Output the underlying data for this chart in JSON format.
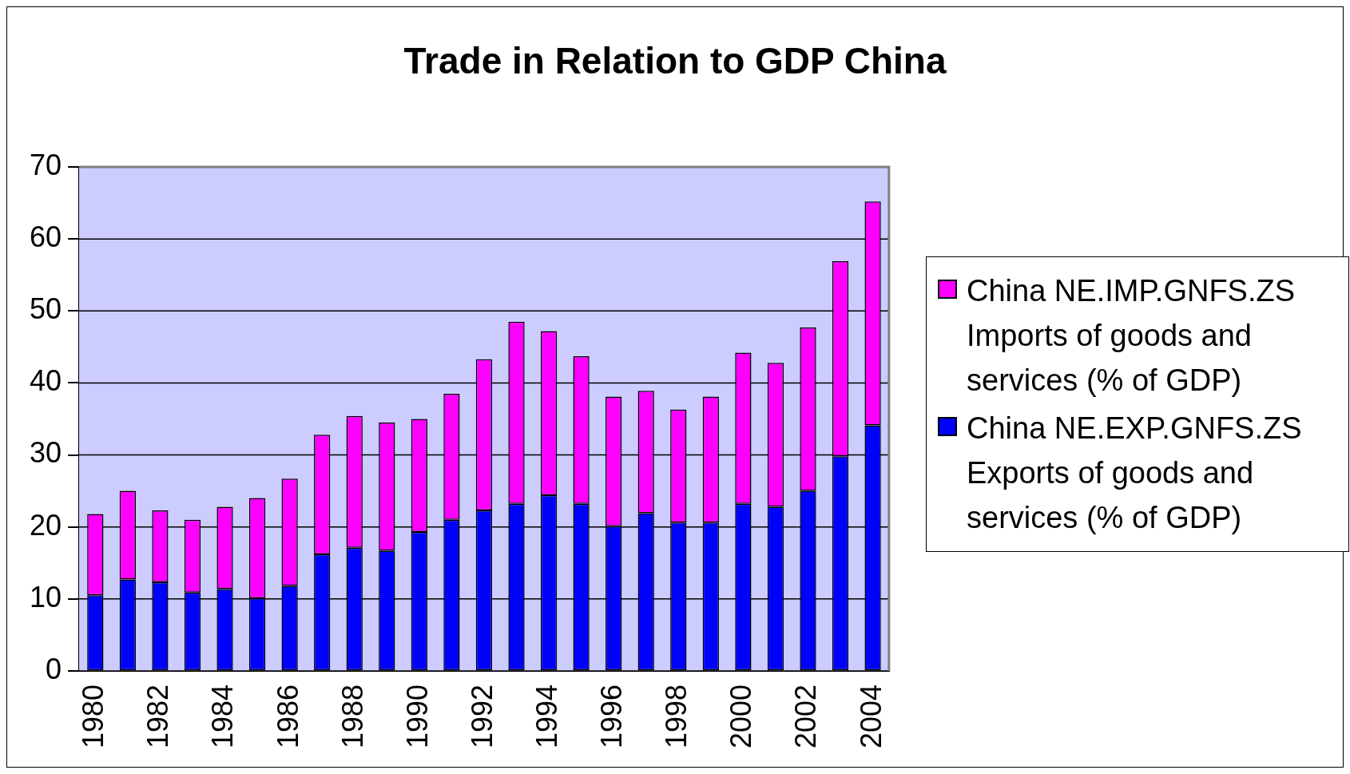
{
  "chart_data": {
    "type": "bar",
    "title": "Trade in Relation to GDP China",
    "stacked": true,
    "legend": "right",
    "grid": "y",
    "categories": [
      "1980",
      null,
      "1982",
      null,
      "1984",
      null,
      "1986",
      null,
      "1988",
      null,
      "1990",
      null,
      "1992",
      null,
      "1994",
      null,
      "1996",
      null,
      "1998",
      null,
      "2000",
      null,
      "2002",
      null,
      "2004"
    ],
    "ylim": [
      0,
      70
    ],
    "yticks": [
      0,
      10,
      20,
      30,
      40,
      50,
      60,
      70
    ],
    "series": [
      {
        "name": "China NE.EXP.GNFS.ZS Exports of goods and services (% of GDP)",
        "color": "#0000ff",
        "values": [
          10.5,
          12.7,
          12.3,
          10.9,
          11.4,
          10.1,
          11.8,
          16.2,
          17.1,
          16.7,
          19.3,
          21.0,
          22.3,
          23.2,
          24.4,
          23.2,
          20.1,
          21.9,
          20.6,
          20.6,
          23.2,
          22.8,
          25.0,
          29.8,
          34.1
        ]
      },
      {
        "name": "China NE.IMP.GNFS.ZS Imports of goods and services (% of GDP)",
        "color": "#ff00ff",
        "values": [
          11.3,
          12.3,
          10.0,
          10.1,
          11.4,
          13.9,
          14.9,
          16.6,
          18.3,
          17.8,
          15.7,
          17.5,
          21.0,
          25.3,
          22.8,
          20.5,
          18.0,
          17.0,
          15.7,
          17.5,
          21.0,
          20.0,
          22.7,
          27.1,
          31.1
        ]
      }
    ]
  }
}
